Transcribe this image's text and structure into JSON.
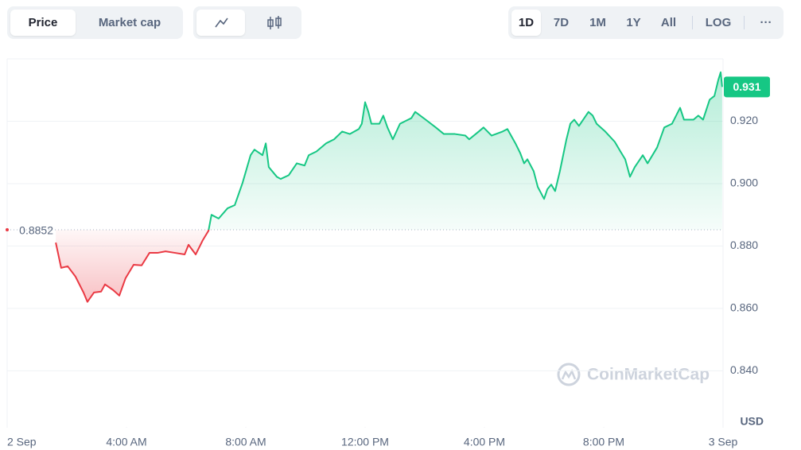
{
  "controls": {
    "metric_tabs": [
      "Price",
      "Market cap"
    ],
    "ranges": [
      "1D",
      "7D",
      "1M",
      "1Y",
      "All"
    ],
    "scale": "LOG",
    "more": "···"
  },
  "chart_data": {
    "type": "line",
    "x": [
      1.63,
      1.81,
      2.03,
      2.29,
      2.56,
      2.69,
      2.91,
      3.15,
      3.28,
      3.55,
      3.76,
      3.97,
      4.24,
      4.51,
      4.77,
      5.04,
      5.31,
      5.63,
      5.95,
      6.08,
      6.32,
      6.56,
      6.75,
      6.85,
      7.09,
      7.39,
      7.63,
      7.89,
      8.16,
      8.29,
      8.56,
      8.67,
      8.77,
      9.04,
      9.17,
      9.44,
      9.71,
      9.97,
      10.11,
      10.37,
      10.69,
      10.96,
      11.23,
      11.49,
      11.79,
      11.89,
      12,
      12.11,
      12.21,
      12.48,
      12.61,
      12.75,
      12.93,
      13.17,
      13.55,
      13.68,
      14.03,
      14.37,
      14.64,
      15.01,
      15.36,
      15.49,
      15.81,
      15.97,
      16.24,
      16.61,
      16.77,
      17.04,
      17.2,
      17.33,
      17.44,
      17.65,
      17.79,
      17.89,
      18,
      18.11,
      18.24,
      18.37,
      18.53,
      18.64,
      18.75,
      18.88,
      19.01,
      19.17,
      19.49,
      19.63,
      19.76,
      20.05,
      20.37,
      20.56,
      20.72,
      20.88,
      21.04,
      21.31,
      21.47,
      21.79,
      22.03,
      22.29,
      22.56,
      22.69,
      23.01,
      23.17,
      23.33,
      23.55,
      23.71,
      23.84,
      23.92,
      23.97
    ],
    "values": [
      0.8811,
      0.873,
      0.8735,
      0.8702,
      0.8651,
      0.8621,
      0.8651,
      0.8654,
      0.8677,
      0.8659,
      0.8641,
      0.8697,
      0.874,
      0.8738,
      0.8778,
      0.8778,
      0.8783,
      0.8778,
      0.8773,
      0.8804,
      0.8773,
      0.8819,
      0.8849,
      0.89,
      0.8888,
      0.8921,
      0.8931,
      0.9002,
      0.9091,
      0.9109,
      0.9091,
      0.9129,
      0.9053,
      0.9022,
      0.9015,
      0.9027,
      0.9065,
      0.9058,
      0.9091,
      0.9103,
      0.9129,
      0.9142,
      0.9167,
      0.9159,
      0.9175,
      0.9192,
      0.9261,
      0.923,
      0.9192,
      0.9192,
      0.9218,
      0.918,
      0.9142,
      0.9192,
      0.921,
      0.923,
      0.9205,
      0.918,
      0.9159,
      0.9159,
      0.9154,
      0.9142,
      0.9167,
      0.918,
      0.9154,
      0.9167,
      0.9175,
      0.9129,
      0.9098,
      0.9065,
      0.9078,
      0.904,
      0.8989,
      0.8971,
      0.8951,
      0.8982,
      0.8997,
      0.8976,
      0.904,
      0.9091,
      0.9142,
      0.9192,
      0.9205,
      0.9185,
      0.923,
      0.9218,
      0.9192,
      0.9167,
      0.9134,
      0.9103,
      0.9078,
      0.9022,
      0.9053,
      0.9091,
      0.9065,
      0.9116,
      0.918,
      0.9192,
      0.9243,
      0.9205,
      0.9205,
      0.9218,
      0.9205,
      0.9269,
      0.9281,
      0.9332,
      0.9357,
      0.931
    ],
    "baseline": 0.8852,
    "colors": {
      "above": "#16c784",
      "below": "#ea3943"
    },
    "currency": "USD",
    "watermark": "CoinMarketCap",
    "grid": true,
    "xlim": [
      0,
      24
    ],
    "xticks": [
      {
        "value": 0,
        "label": "2 Sep"
      },
      {
        "value": 4,
        "label": "4:00 AM"
      },
      {
        "value": 8,
        "label": "8:00 AM"
      },
      {
        "value": 12,
        "label": "12:00 PM"
      },
      {
        "value": 16,
        "label": "4:00 PM"
      },
      {
        "value": 20,
        "label": "8:00 PM"
      },
      {
        "value": 24,
        "label": "3 Sep"
      }
    ],
    "ylim": [
      0.822,
      0.94
    ],
    "yticks": [
      {
        "value": 0.84,
        "label": "0.840"
      },
      {
        "value": 0.86,
        "label": "0.860"
      },
      {
        "value": 0.88,
        "label": "0.880"
      },
      {
        "value": 0.9,
        "label": "0.900"
      },
      {
        "value": 0.92,
        "label": "0.920"
      }
    ]
  }
}
